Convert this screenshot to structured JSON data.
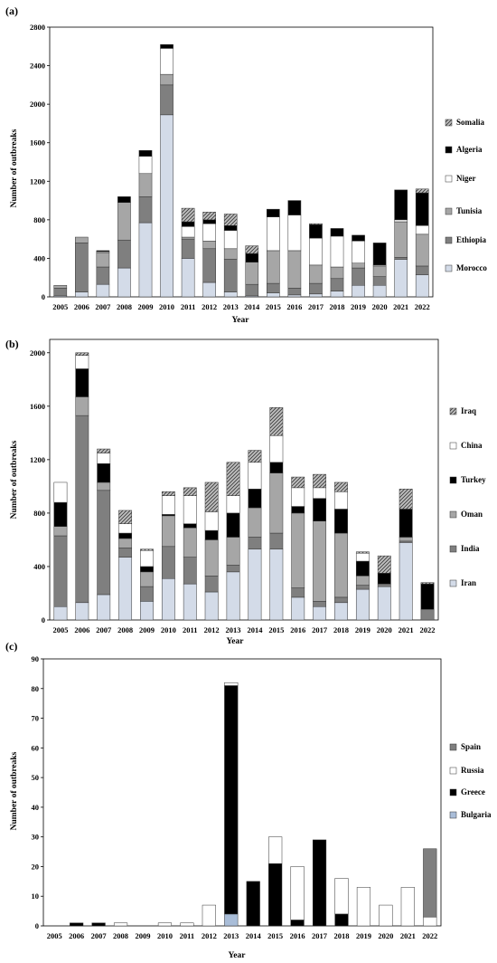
{
  "colors": {
    "Morocco": "#d3dbe8",
    "Ethiopia": "#7f7f7f",
    "Tunisia": "#a6a6a6",
    "Niger": "#ffffff",
    "Algeria": "#000000",
    "Somalia": "#8c8c8c",
    "Iran": "#d3dbe8",
    "India": "#7f7f7f",
    "Oman": "#a6a6a6",
    "Turkey": "#000000",
    "China": "#ffffff",
    "Iraq": "#9a9a9a",
    "Bulgaria": "#a9bdd8",
    "Greece": "#000000",
    "Russia": "#ffffff",
    "Spain": "#7f7f7f"
  },
  "chart_data": [
    {
      "panel_label": "(a)",
      "type": "bar",
      "stacked": true,
      "xlabel": "Year",
      "ylabel": "Number of outbreaks",
      "ylim": [
        0,
        2800
      ],
      "yticks": [
        0,
        400,
        800,
        1200,
        1600,
        2000,
        2400,
        2800
      ],
      "categories": [
        "2005",
        "2006",
        "2007",
        "2008",
        "2009",
        "2010",
        "2011",
        "2012",
        "2013",
        "2014",
        "2015",
        "2016",
        "2017",
        "2018",
        "2019",
        "2020",
        "2021",
        "2022"
      ],
      "series": [
        {
          "name": "Morocco",
          "values": [
            10,
            50,
            130,
            300,
            770,
            1890,
            400,
            150,
            50,
            10,
            40,
            20,
            30,
            60,
            120,
            120,
            390,
            230
          ]
        },
        {
          "name": "Ethiopia",
          "values": [
            80,
            510,
            180,
            290,
            270,
            310,
            200,
            350,
            340,
            120,
            100,
            70,
            110,
            130,
            180,
            90,
            20,
            90
          ]
        },
        {
          "name": "Tunisia",
          "values": [
            30,
            60,
            150,
            390,
            240,
            110,
            20,
            80,
            110,
            230,
            340,
            390,
            190,
            120,
            50,
            110,
            370,
            330
          ]
        },
        {
          "name": "Niger",
          "values": [
            0,
            0,
            10,
            0,
            180,
            270,
            110,
            180,
            190,
            0,
            350,
            370,
            280,
            320,
            230,
            10,
            20,
            90
          ]
        },
        {
          "name": "Algeria",
          "values": [
            0,
            0,
            10,
            60,
            60,
            40,
            50,
            40,
            50,
            90,
            80,
            150,
            140,
            80,
            60,
            230,
            310,
            340
          ]
        },
        {
          "name": "Somalia",
          "values": [
            0,
            0,
            0,
            0,
            0,
            0,
            140,
            80,
            120,
            80,
            0,
            0,
            10,
            0,
            0,
            0,
            0,
            40
          ]
        }
      ],
      "legend": [
        "Somalia",
        "Algeria",
        "Niger",
        "Tunisia",
        "Ethiopia",
        "Morocco"
      ],
      "legend_position": "right"
    },
    {
      "panel_label": "(b)",
      "type": "bar",
      "stacked": true,
      "xlabel": "Year",
      "ylabel": "Number of outbreaks",
      "ylim": [
        0,
        2100
      ],
      "yticks": [
        0,
        400,
        800,
        1200,
        1600,
        2000
      ],
      "categories": [
        "2005",
        "2006",
        "2007",
        "2008",
        "2009",
        "2010",
        "2011",
        "2012",
        "2013",
        "2014",
        "2015",
        "2016",
        "2017",
        "2018",
        "2019",
        "2020",
        "2021",
        "2022"
      ],
      "series": [
        {
          "name": "Iran",
          "values": [
            100,
            130,
            190,
            470,
            140,
            310,
            270,
            210,
            360,
            530,
            530,
            170,
            100,
            130,
            230,
            250,
            580,
            0
          ]
        },
        {
          "name": "India",
          "values": [
            530,
            1400,
            780,
            70,
            110,
            240,
            200,
            120,
            50,
            90,
            120,
            70,
            40,
            40,
            30,
            20,
            10,
            80
          ]
        },
        {
          "name": "Oman",
          "values": [
            70,
            140,
            60,
            70,
            110,
            230,
            220,
            270,
            210,
            220,
            450,
            560,
            600,
            480,
            70,
            0,
            30,
            0
          ]
        },
        {
          "name": "Turkey",
          "values": [
            180,
            210,
            140,
            40,
            40,
            10,
            30,
            70,
            180,
            140,
            80,
            50,
            170,
            180,
            110,
            80,
            210,
            190
          ]
        },
        {
          "name": "China",
          "values": [
            150,
            100,
            80,
            70,
            120,
            140,
            210,
            140,
            130,
            200,
            200,
            140,
            80,
            130,
            60,
            0,
            0,
            0
          ]
        },
        {
          "name": "Iraq",
          "values": [
            0,
            20,
            30,
            100,
            10,
            30,
            60,
            220,
            250,
            90,
            210,
            80,
            100,
            70,
            10,
            130,
            150,
            10
          ]
        }
      ],
      "legend": [
        "Iraq",
        "China",
        "Turkey",
        "Oman",
        "India",
        "Iran"
      ],
      "legend_position": "right"
    },
    {
      "panel_label": "(c)",
      "type": "bar",
      "stacked": true,
      "xlabel": "Year",
      "ylabel": "Number of outbreaks",
      "ylim": [
        0,
        90
      ],
      "yticks": [
        0,
        10,
        20,
        30,
        40,
        50,
        60,
        70,
        80,
        90
      ],
      "categories": [
        "2005",
        "2006",
        "2007",
        "2008",
        "2009",
        "2010",
        "2011",
        "2012",
        "2013",
        "2014",
        "2015",
        "2016",
        "2017",
        "2018",
        "2019",
        "2020",
        "2021",
        "2022"
      ],
      "series": [
        {
          "name": "Bulgaria",
          "values": [
            0,
            0,
            0,
            0,
            0,
            0,
            0,
            0,
            4,
            0,
            0,
            0,
            0,
            0,
            0,
            0,
            0,
            0
          ]
        },
        {
          "name": "Greece",
          "values": [
            0,
            1,
            1,
            0,
            0,
            0,
            0,
            0,
            77,
            15,
            21,
            2,
            29,
            4,
            0,
            0,
            0,
            0
          ]
        },
        {
          "name": "Russia",
          "values": [
            0,
            0,
            0,
            1,
            0,
            1,
            1,
            7,
            1,
            0,
            9,
            18,
            0,
            12,
            13,
            7,
            13,
            3
          ]
        },
        {
          "name": "Spain",
          "values": [
            0,
            0,
            0,
            0,
            0,
            0,
            0,
            0,
            0,
            0,
            0,
            0,
            0,
            0,
            0,
            0,
            0,
            23
          ]
        }
      ],
      "legend": [
        "Spain",
        "Russia",
        "Greece",
        "Bulgaria"
      ],
      "legend_position": "right"
    }
  ]
}
